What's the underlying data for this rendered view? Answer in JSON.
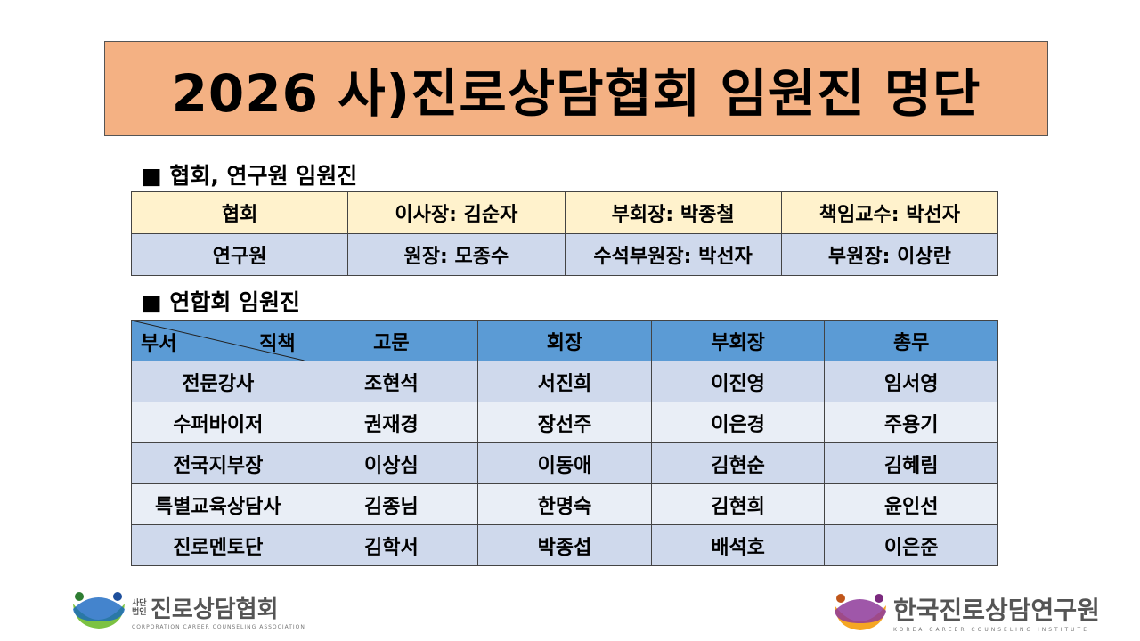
{
  "title": "2026 사)진로상담협회 임원진 명단",
  "section1": "■ 협회, 연구원 임원진",
  "section2": "■ 연합회  임원진",
  "table1": [
    [
      "협회",
      "이사장: 김순자",
      "부회장: 박종철",
      "책임교수: 박선자"
    ],
    [
      "연구원",
      "원장: 모종수",
      "수석부원장: 박선자",
      "부원장: 이상란"
    ]
  ],
  "table2": {
    "corner": {
      "left": "부서",
      "right": "직책"
    },
    "headers": [
      "고문",
      "회장",
      "부회장",
      "총무"
    ],
    "rows": [
      [
        "전문강사",
        "조현석",
        "서진희",
        "이진영",
        "임서영"
      ],
      [
        "수퍼바이저",
        "권재경",
        "장선주",
        "이은경",
        "주용기"
      ],
      [
        "전국지부장",
        "이상심",
        "이동애",
        "김현순",
        "김혜림"
      ],
      [
        "특별교육상담사",
        "김종님",
        "한명숙",
        "김현희",
        "윤인선"
      ],
      [
        "진로멘토단",
        "김학서",
        "박종섭",
        "배석호",
        "이은준"
      ]
    ]
  },
  "logos": {
    "left": {
      "prefix": "사단법인",
      "name": "진로상담협회",
      "sub": "CORPORATION CAREER COUNSELING ASSOCIATION"
    },
    "right": {
      "name": "한국진로상담연구원",
      "sub": "KOREA CAREER COUNSELING INSTITUTE"
    }
  },
  "colors": {
    "title_bg": "#f4b183",
    "header_blue": "#5b9bd5",
    "row_yellow": "#fff2cc",
    "row_blue": "#cfd9ec",
    "row_light": "#e9eef6"
  }
}
